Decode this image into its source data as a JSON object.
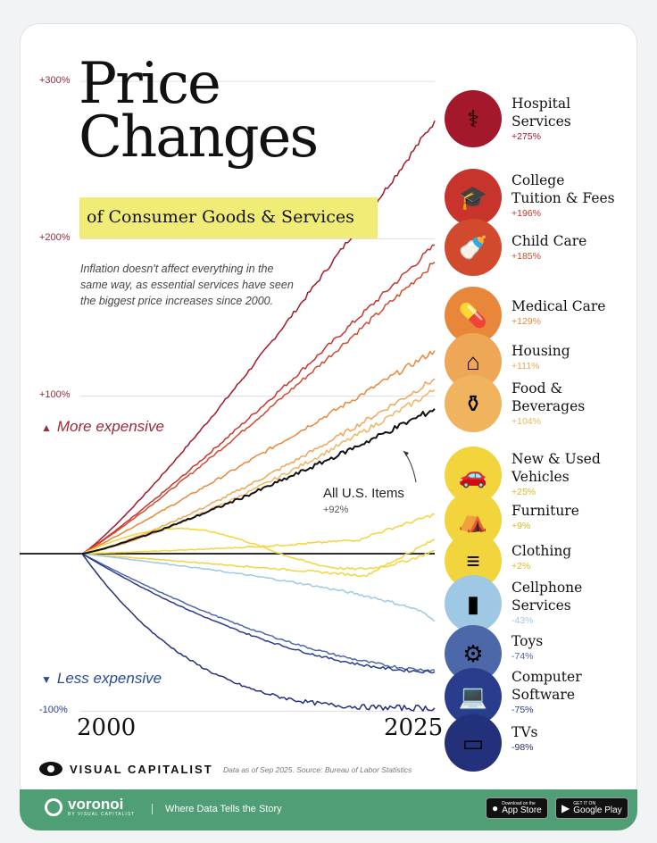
{
  "title": "Price\nChanges",
  "subtitle": "of Consumer Goods & Services",
  "description": "Inflation doesn't affect everything in the same way, as essential services have seen the biggest price increases since 2000.",
  "more_expensive": "More expensive",
  "less_expensive": "Less expensive",
  "annotation": {
    "label": "All U.S. Items",
    "value": "+92%"
  },
  "footer": {
    "brand": "VISUAL CAPITALIST",
    "source": "Data as of Sep 2025. Source: Bureau of Labor Statistics",
    "voronoi": "voronoi",
    "voronoi_sub": "BY VISUAL CAPITALIST",
    "tagline": "Where Data Tells the Story",
    "app_store_small": "Download on the",
    "app_store": "App Store",
    "google_play_small": "GET IT ON",
    "google_play": "Google Play"
  },
  "colors": {
    "hospital": "#a3182a",
    "college": "#c8342c",
    "childcare": "#d24a2e",
    "medical": "#e8873a",
    "housing": "#eea657",
    "food": "#f0b45e",
    "allitems": "#111111",
    "yellow": "#f2d43c",
    "light_blue": "#9fc8e4",
    "mid_blue": "#4d68a8",
    "dark_blue": "#2a3c8c",
    "navy": "#23307a",
    "green_bar": "#4f9e75",
    "title_highlight": "#f1ec76"
  },
  "chart_data": {
    "type": "line",
    "x_start": "2000",
    "x_end": "2025",
    "ylim": [
      -100,
      300
    ],
    "yticks": [
      {
        "value": 300,
        "label": "+300%"
      },
      {
        "value": 200,
        "label": "+200%"
      },
      {
        "value": 100,
        "label": "+100%"
      },
      {
        "value": -100,
        "label": "-100%"
      }
    ],
    "series": [
      {
        "name": "Hospital Services",
        "change": "+275%",
        "value": 275,
        "color": "#a3182a",
        "icon": "stethoscope-icon"
      },
      {
        "name": "College Tuition & Fees",
        "change": "+196%",
        "value": 196,
        "color": "#c8342c",
        "icon": "graduation-cap-icon"
      },
      {
        "name": "Child Care",
        "change": "+185%",
        "value": 185,
        "color": "#d24a2e",
        "icon": "baby-bottle-icon"
      },
      {
        "name": "Medical Care",
        "change": "+129%",
        "value": 129,
        "color": "#e8873a",
        "icon": "pill-bottle-icon"
      },
      {
        "name": "Housing",
        "change": "+111%",
        "value": 111,
        "color": "#eea657",
        "icon": "house-icon"
      },
      {
        "name": "Food & Beverages",
        "change": "+104%",
        "value": 104,
        "color": "#f0b45e",
        "icon": "bottles-icon"
      },
      {
        "name": "New & Used Vehicles",
        "change": "+25%",
        "value": 25,
        "color": "#f2d43c",
        "icon": "car-icon"
      },
      {
        "name": "Furniture",
        "change": "+9%",
        "value": 9,
        "color": "#f2d43c",
        "icon": "armchair-icon"
      },
      {
        "name": "Clothing",
        "change": "+2%",
        "value": 2,
        "color": "#f2d43c",
        "icon": "folded-clothes-icon"
      },
      {
        "name": "Cellphone Services",
        "change": "-43%",
        "value": -43,
        "color": "#9fc8e4",
        "icon": "phone-icon"
      },
      {
        "name": "Toys",
        "change": "-74%",
        "value": -74,
        "color": "#4d68a8",
        "icon": "toy-robot-icon"
      },
      {
        "name": "Computer Software",
        "change": "-75%",
        "value": -75,
        "color": "#2a3c8c",
        "icon": "laptop-icon"
      },
      {
        "name": "TVs",
        "change": "-98%",
        "value": -98,
        "color": "#23307a",
        "icon": "tv-icon"
      }
    ],
    "all_items": {
      "name": "All U.S. Items",
      "value": 92
    }
  }
}
